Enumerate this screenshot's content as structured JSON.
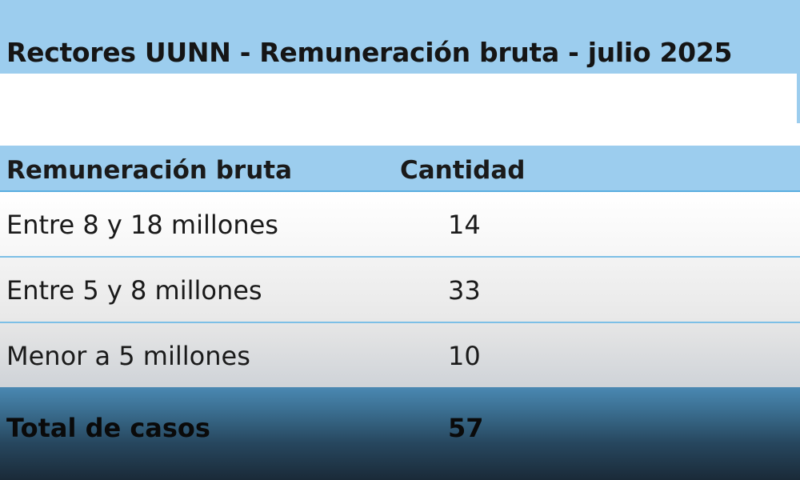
{
  "title": "Rectores UUNN - Remuneración bruta - julio 2025",
  "chart_data": {
    "type": "table",
    "title": "Rectores UUNN - Remuneración bruta - julio 2025",
    "columns": [
      "Remuneración bruta",
      "Cantidad"
    ],
    "rows": [
      {
        "label": "Entre 8 y 18 millones",
        "value": "14"
      },
      {
        "label": "Entre 5 y 8 millones",
        "value": "33"
      },
      {
        "label": "Menor a 5 millones",
        "value": "10"
      }
    ],
    "total": {
      "label": "Total de casos",
      "value": "57"
    }
  },
  "colors": {
    "header": "#9ccdee",
    "divider": "#7dbfe6",
    "total_top": "#4a88b2",
    "total_bottom": "#1a2a38"
  }
}
